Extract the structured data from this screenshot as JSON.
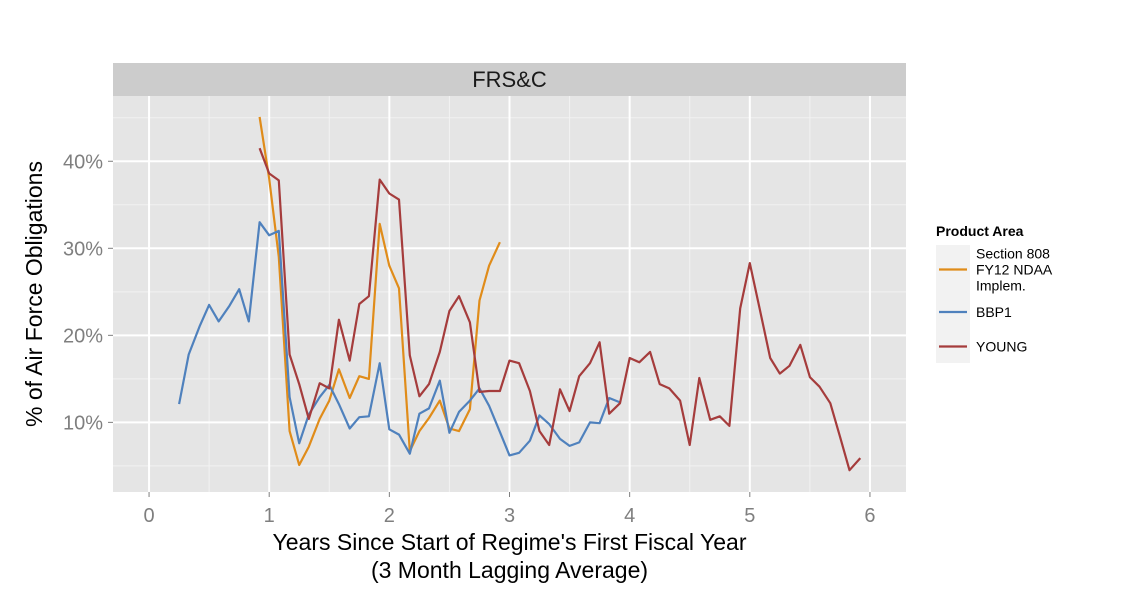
{
  "chart_data": {
    "type": "line",
    "facet_title": "FRS&C",
    "xlabel": "Years Since Start of Regime's First Fiscal Year",
    "xlabel_line2": "(3 Month Lagging Average)",
    "ylabel": "% of Air Force Obligations",
    "xlim": [
      -0.3,
      6.3
    ],
    "ylim": [
      2.0,
      47.5
    ],
    "x_ticks": [
      0,
      1,
      2,
      3,
      4,
      5,
      6
    ],
    "x_tick_labels": [
      "0",
      "1",
      "2",
      "3",
      "4",
      "5",
      "6"
    ],
    "y_ticks": [
      10,
      20,
      30,
      40
    ],
    "y_tick_labels": [
      "10%",
      "20%",
      "30%",
      "40%"
    ],
    "grid": true,
    "legend": {
      "title": "Product Area",
      "position": "right",
      "entries": [
        {
          "label_lines": [
            "Section 808",
            "FY12 NDAA",
            "Implem."
          ],
          "series": "Section 808 FY12 NDAA Implem."
        },
        {
          "label_lines": [
            "BBP1"
          ],
          "series": "BBP1"
        },
        {
          "label_lines": [
            "YOUNG"
          ],
          "series": "YOUNG"
        }
      ]
    },
    "series": [
      {
        "name": "Section 808 FY12 NDAA Implem.",
        "color": "#e08c1a",
        "x": [
          0.92,
          1.0,
          1.08,
          1.17,
          1.25,
          1.33,
          1.42,
          1.5,
          1.58,
          1.67,
          1.75,
          1.83,
          1.92,
          2.0,
          2.08,
          2.17,
          2.25,
          2.33,
          2.42,
          2.5,
          2.58,
          2.67,
          2.75,
          2.83,
          2.92
        ],
        "y": [
          45.1,
          38.0,
          29.0,
          9.0,
          5.1,
          7.2,
          10.4,
          12.5,
          16.1,
          12.8,
          15.3,
          15.0,
          32.8,
          28.0,
          25.4,
          6.7,
          9.0,
          10.5,
          12.5,
          9.3,
          9.0,
          11.5,
          24.0,
          28.0,
          30.7
        ]
      },
      {
        "name": "BBP1",
        "color": "#4f81bd",
        "x": [
          0.25,
          0.33,
          0.42,
          0.5,
          0.58,
          0.67,
          0.75,
          0.83,
          0.92,
          1.0,
          1.08,
          1.17,
          1.25,
          1.33,
          1.42,
          1.5,
          1.58,
          1.67,
          1.75,
          1.83,
          1.92,
          2.0,
          2.08,
          2.17,
          2.25,
          2.33,
          2.42,
          2.5,
          2.58,
          2.67,
          2.75,
          2.83,
          2.92,
          3.0,
          3.08,
          3.17,
          3.25,
          3.33,
          3.42,
          3.5,
          3.58,
          3.67,
          3.75,
          3.83,
          3.92
        ],
        "y": [
          12.1,
          17.8,
          21.0,
          23.5,
          21.6,
          23.4,
          25.3,
          21.6,
          33.0,
          31.5,
          32.0,
          12.9,
          7.6,
          10.9,
          12.9,
          14.3,
          12.1,
          9.3,
          10.6,
          10.7,
          16.8,
          9.2,
          8.6,
          6.4,
          11.0,
          11.6,
          14.8,
          8.8,
          11.2,
          12.5,
          13.9,
          11.9,
          8.9,
          6.2,
          6.5,
          7.9,
          10.8,
          9.8,
          8.1,
          7.3,
          7.7,
          10.0,
          9.9,
          12.8,
          12.3
        ]
      },
      {
        "name": "YOUNG",
        "color": "#a53c3c",
        "x": [
          0.92,
          1.0,
          1.08,
          1.17,
          1.25,
          1.33,
          1.42,
          1.5,
          1.58,
          1.67,
          1.75,
          1.83,
          1.92,
          2.0,
          2.08,
          2.17,
          2.25,
          2.33,
          2.42,
          2.5,
          2.58,
          2.67,
          2.75,
          2.83,
          2.92,
          3.0,
          3.08,
          3.17,
          3.25,
          3.33,
          3.42,
          3.5,
          3.58,
          3.67,
          3.75,
          3.83,
          3.92,
          4.0,
          4.08,
          4.17,
          4.25,
          4.33,
          4.42,
          4.5,
          4.58,
          4.67,
          4.75,
          4.83,
          4.92,
          5.0,
          5.08,
          5.17,
          5.25,
          5.33,
          5.42,
          5.5,
          5.58,
          5.67,
          5.75,
          5.83,
          5.92
        ],
        "y": [
          41.5,
          38.6,
          37.8,
          17.8,
          14.4,
          10.4,
          14.5,
          13.9,
          21.8,
          17.1,
          23.6,
          24.5,
          37.9,
          36.3,
          35.6,
          17.7,
          13.0,
          14.4,
          18.1,
          22.8,
          24.5,
          21.5,
          13.5,
          13.6,
          13.6,
          17.1,
          16.8,
          13.6,
          9.0,
          7.4,
          13.8,
          11.3,
          15.3,
          16.8,
          19.2,
          11.0,
          12.2,
          17.4,
          16.9,
          18.1,
          14.4,
          13.9,
          12.5,
          7.4,
          15.1,
          10.3,
          10.7,
          9.6,
          23.1,
          28.3,
          23.2,
          17.4,
          15.6,
          16.5,
          18.9,
          15.2,
          14.1,
          12.2,
          8.4,
          4.5,
          5.9
        ]
      }
    ]
  }
}
